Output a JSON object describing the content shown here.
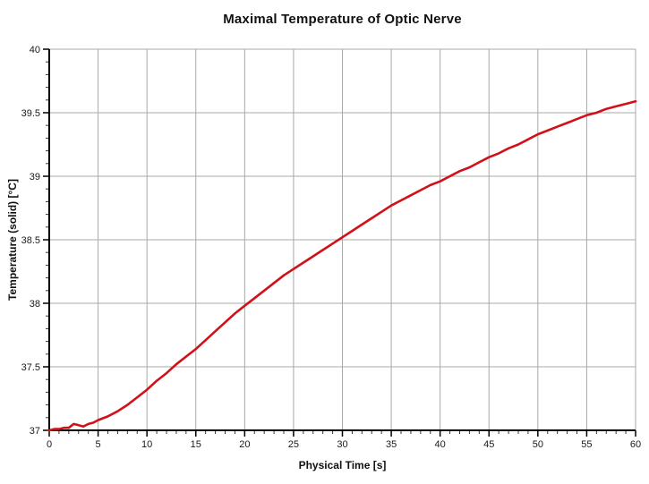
{
  "chart_data": {
    "type": "line",
    "title": "Maximal Temperature of Optic Nerve",
    "xlabel": "Physical Time [s]",
    "ylabel": "Temperature (solid) [°C]",
    "xlim": [
      0,
      60
    ],
    "ylim": [
      37,
      40
    ],
    "x_ticks": [
      0,
      5,
      10,
      15,
      20,
      25,
      30,
      35,
      40,
      45,
      50,
      55,
      60
    ],
    "x_tick_labels": [
      "0",
      "5",
      "10",
      "15",
      "20",
      "25",
      "30",
      "35",
      "40",
      "45",
      "50",
      "55",
      "60"
    ],
    "x_minor_step": 1,
    "y_ticks": [
      37,
      37.5,
      38,
      38.5,
      39,
      39.5,
      40
    ],
    "y_tick_labels": [
      "37",
      "37.5",
      "38",
      "38.5",
      "39",
      "39.5",
      "40"
    ],
    "y_minor_step": 0.1,
    "grid": "major-only",
    "legend": "none",
    "colors": {
      "curve": "#d01119",
      "grid": "#a8a8a8",
      "axis": "#000000",
      "background": "#ffffff",
      "text": "#111111"
    },
    "series": [
      {
        "name": "Temperature (solid)",
        "color": "#d01119",
        "points": [
          [
            0,
            37.0
          ],
          [
            0.5,
            37.01
          ],
          [
            1,
            37.01
          ],
          [
            1.5,
            37.02
          ],
          [
            2,
            37.02
          ],
          [
            2.5,
            37.05
          ],
          [
            3,
            37.04
          ],
          [
            3.5,
            37.03
          ],
          [
            4,
            37.05
          ],
          [
            4.5,
            37.06
          ],
          [
            5,
            37.08
          ],
          [
            6,
            37.11
          ],
          [
            7,
            37.15
          ],
          [
            8,
            37.2
          ],
          [
            9,
            37.26
          ],
          [
            10,
            37.32
          ],
          [
            11,
            37.39
          ],
          [
            12,
            37.45
          ],
          [
            13,
            37.52
          ],
          [
            14,
            37.58
          ],
          [
            15,
            37.64
          ],
          [
            16,
            37.71
          ],
          [
            17,
            37.78
          ],
          [
            18,
            37.85
          ],
          [
            19,
            37.92
          ],
          [
            20,
            37.98
          ],
          [
            21,
            38.04
          ],
          [
            22,
            38.1
          ],
          [
            23,
            38.16
          ],
          [
            24,
            38.22
          ],
          [
            25,
            38.27
          ],
          [
            26,
            38.32
          ],
          [
            27,
            38.37
          ],
          [
            28,
            38.42
          ],
          [
            29,
            38.47
          ],
          [
            30,
            38.52
          ],
          [
            31,
            38.57
          ],
          [
            32,
            38.62
          ],
          [
            33,
            38.67
          ],
          [
            34,
            38.72
          ],
          [
            35,
            38.77
          ],
          [
            36,
            38.81
          ],
          [
            37,
            38.85
          ],
          [
            38,
            38.89
          ],
          [
            39,
            38.93
          ],
          [
            40,
            38.96
          ],
          [
            41,
            39.0
          ],
          [
            42,
            39.04
          ],
          [
            43,
            39.07
          ],
          [
            44,
            39.11
          ],
          [
            45,
            39.15
          ],
          [
            46,
            39.18
          ],
          [
            47,
            39.22
          ],
          [
            48,
            39.25
          ],
          [
            49,
            39.29
          ],
          [
            50,
            39.33
          ],
          [
            51,
            39.36
          ],
          [
            52,
            39.39
          ],
          [
            53,
            39.42
          ],
          [
            54,
            39.45
          ],
          [
            55,
            39.48
          ],
          [
            56,
            39.5
          ],
          [
            57,
            39.53
          ],
          [
            58,
            39.55
          ],
          [
            59,
            39.57
          ],
          [
            60,
            39.59
          ]
        ]
      }
    ]
  }
}
